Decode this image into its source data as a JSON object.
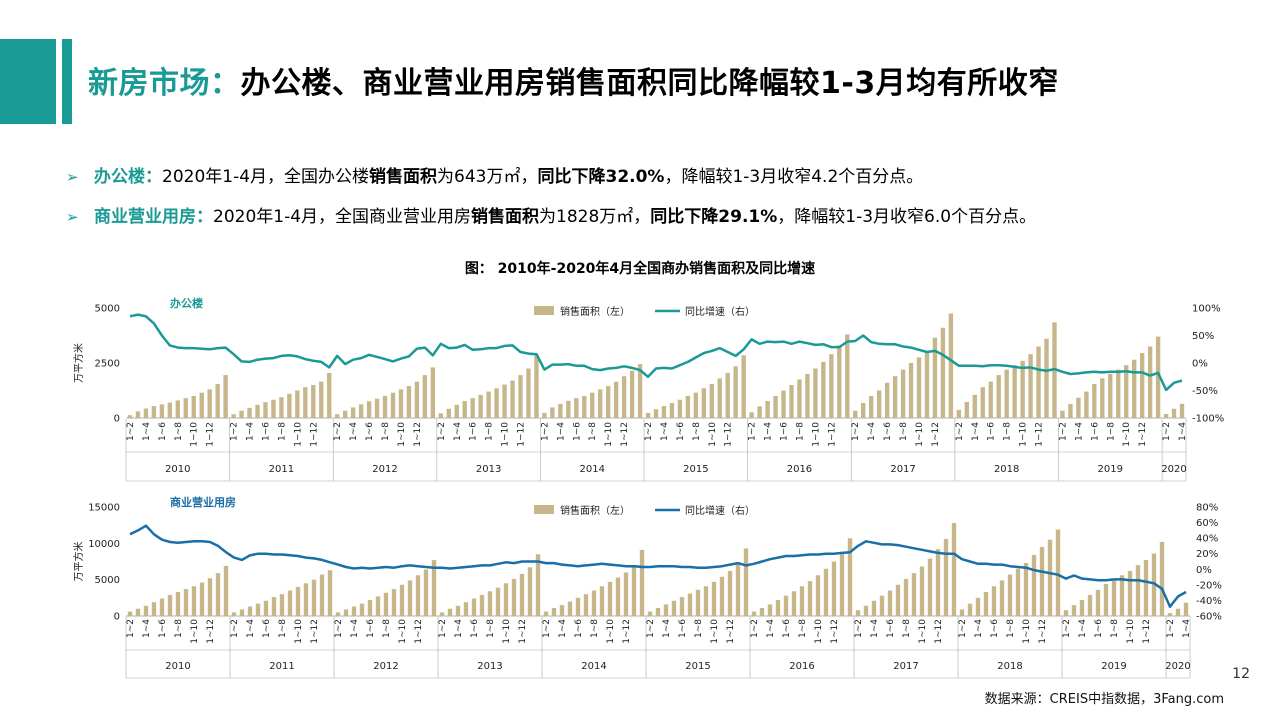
{
  "header": {
    "title_accent": "新房市场：",
    "title_rest": "办公楼、商业营业用房销售面积同比降幅较1-3月均有所收窄",
    "accent_color": "#1a9a95"
  },
  "bullets": [
    {
      "label": "办公楼：",
      "t1": "2020年1-4月，全国办公楼",
      "b1": "销售面积",
      "t2": "为643万㎡，",
      "b2": "同比下降32.0%",
      "t3": "，降幅较1-3月收窄4.2个百分点。"
    },
    {
      "label": "商业营业用房：",
      "t1": "2020年1-4月，全国商业营业用房",
      "b1": "销售面积",
      "t2": "为1828万㎡，",
      "b2": "同比下降29.1%",
      "t3": "，降幅较1-3月收窄6.0个百分点。"
    }
  ],
  "figure_title": "图：  2010年-2020年4月全国商办销售面积及同比增速",
  "page_number": "12",
  "source": "数据来源：CREIS中指数据，3Fang.com",
  "colors": {
    "bar": "#c6b68a",
    "line1": "#1a9a95",
    "line2": "#1a6fa8"
  },
  "chart_data": [
    {
      "type": "bar+line",
      "title": "办公楼",
      "ylabel": "万平方米",
      "ylim": [
        0,
        5000
      ],
      "y_ticks": [
        "0",
        "2500",
        "5000"
      ],
      "y2lim": [
        -100,
        100
      ],
      "y2_ticks": [
        "-100%",
        "-50%",
        "0%",
        "50%",
        "100%"
      ],
      "legend": [
        "销售面积（左）",
        "同比增速（右）"
      ],
      "years": [
        "2010",
        "2011",
        "2012",
        "2013",
        "2014",
        "2015",
        "2016",
        "2017",
        "2018",
        "2019",
        "2020"
      ],
      "period_labels": [
        "1~2",
        "1~4",
        "1~6",
        "1~8",
        "1~10",
        "1~12"
      ],
      "period_labels_2020": [
        "1~2",
        "1~4"
      ],
      "series": [
        {
          "name": "销售面积（左）",
          "values": [
            [
              130,
              300,
              430,
              540,
              620,
              700,
              800,
              900,
              1000,
              1150,
              1300,
              1550,
              1950
            ],
            [
              170,
              330,
              460,
              600,
              720,
              830,
              950,
              1100,
              1250,
              1400,
              1500,
              1650,
              2050
            ],
            [
              170,
              330,
              480,
              620,
              760,
              880,
              1000,
              1150,
              1300,
              1450,
              1650,
              1950,
              2300
            ],
            [
              210,
              420,
              600,
              770,
              900,
              1050,
              1200,
              1350,
              1520,
              1700,
              1950,
              2250,
              2900
            ],
            [
              230,
              480,
              640,
              780,
              900,
              1000,
              1150,
              1300,
              1450,
              1650,
              1900,
              2150,
              2450
            ],
            [
              230,
              400,
              540,
              680,
              830,
              1000,
              1150,
              1350,
              1550,
              1800,
              2050,
              2350,
              2850
            ],
            [
              260,
              530,
              770,
              1000,
              1250,
              1500,
              1750,
              2000,
              2250,
              2550,
              2900,
              3300,
              3800
            ],
            [
              330,
              680,
              1000,
              1250,
              1600,
              1900,
              2200,
              2500,
              2750,
              3050,
              3650,
              4100,
              4750
            ],
            [
              370,
              730,
              1050,
              1400,
              1650,
              1950,
              2200,
              2400,
              2600,
              2900,
              3250,
              3600,
              4350
            ],
            [
              330,
              640,
              920,
              1200,
              1550,
              1800,
              2000,
              2200,
              2400,
              2650,
              2950,
              3250,
              3700
            ],
            [
              180,
              420,
              643
            ]
          ]
        },
        {
          "name": "同比增速（右）",
          "values": [
            [
              85,
              88,
              85,
              72,
              50,
              32,
              28,
              27,
              27,
              26,
              25,
              27,
              28
            ],
            [
              16,
              3,
              2,
              6,
              8,
              9,
              13,
              14,
              12,
              7,
              4,
              2,
              -8
            ],
            [
              13,
              -2,
              6,
              9,
              15,
              11,
              7,
              3,
              8,
              12,
              26,
              28,
              14
            ],
            [
              35,
              27,
              28,
              33,
              24,
              25,
              27,
              27,
              31,
              32,
              20,
              17,
              16
            ],
            [
              -12,
              -3,
              -3,
              -2,
              -5,
              -5,
              -11,
              -13,
              -10,
              -9,
              -6,
              -9,
              -13
            ],
            [
              -25,
              -10,
              -9,
              -10,
              -4,
              2,
              10,
              18,
              22,
              27,
              20,
              13,
              25
            ],
            [
              43,
              35,
              39,
              38,
              39,
              35,
              39,
              36,
              33,
              34,
              29,
              29,
              39
            ],
            [
              40,
              50,
              38,
              35,
              34,
              34,
              30,
              28,
              24,
              20,
              22,
              15,
              5
            ],
            [
              -5,
              -5,
              -5,
              -6,
              -4,
              -4,
              -5,
              -7,
              -9,
              -8,
              -12,
              -14,
              -11
            ],
            [
              -16,
              -20,
              -19,
              -17,
              -16,
              -17,
              -16,
              -16,
              -15,
              -17,
              -17,
              -23,
              -18
            ],
            [
              -49,
              -36,
              -32
            ]
          ]
        }
      ]
    },
    {
      "type": "bar+line",
      "title": "商业营业用房",
      "ylabel": "万平方米",
      "ylim": [
        0,
        15000
      ],
      "y_ticks": [
        "0",
        "5000",
        "10000",
        "15000"
      ],
      "y2lim": [
        -60,
        80
      ],
      "y2_ticks": [
        "-60%",
        "-40%",
        "-20%",
        "0%",
        "20%",
        "40%",
        "60%",
        "80%"
      ],
      "legend": [
        "销售面积（左）",
        "同比增速（右）"
      ],
      "years": [
        "2010",
        "2011",
        "2012",
        "2013",
        "2014",
        "2015",
        "2016",
        "2017",
        "2018",
        "2019",
        "2020"
      ],
      "period_labels": [
        "1~2",
        "1~4",
        "1~6",
        "1~8",
        "1~10",
        "1~12"
      ],
      "period_labels_2020": [
        "1~2",
        "1~4"
      ],
      "series": [
        {
          "name": "销售面积（左）",
          "values": [
            [
              600,
              1000,
              1400,
              1900,
              2400,
              2900,
              3300,
              3700,
              4100,
              4600,
              5200,
              5900,
              6900
            ],
            [
              500,
              900,
              1300,
              1700,
              2100,
              2600,
              3000,
              3500,
              4000,
              4500,
              5000,
              5700,
              6300
            ],
            [
              500,
              900,
              1300,
              1700,
              2200,
              2700,
              3200,
              3700,
              4300,
              4900,
              5600,
              6400,
              7700
            ],
            [
              500,
              1000,
              1400,
              1900,
              2400,
              2900,
              3400,
              3900,
              4500,
              5100,
              5800,
              6700,
              8500
            ],
            [
              600,
              1100,
              1500,
              2000,
              2500,
              3000,
              3500,
              4100,
              4700,
              5300,
              6000,
              6900,
              9100
            ],
            [
              600,
              1100,
              1600,
              2100,
              2600,
              3100,
              3600,
              4100,
              4700,
              5400,
              6200,
              7200,
              9300
            ],
            [
              600,
              1100,
              1600,
              2200,
              2800,
              3400,
              4100,
              4800,
              5600,
              6500,
              7500,
              8700,
              10700
            ],
            [
              800,
              1400,
              2100,
              2800,
              3500,
              4300,
              5100,
              5900,
              6800,
              7900,
              9200,
              10600,
              12800
            ],
            [
              900,
              1700,
              2500,
              3300,
              4100,
              4900,
              5700,
              6500,
              7300,
              8400,
              9500,
              10500,
              11900
            ],
            [
              800,
              1500,
              2200,
              2900,
              3600,
              4400,
              5000,
              5600,
              6200,
              7000,
              7700,
              8600,
              10200
            ],
            [
              400,
              1000,
              1828
            ]
          ]
        },
        {
          "name": "同比增速（右）",
          "values": [
            [
              45,
              50,
              56,
              45,
              38,
              35,
              34,
              35,
              36,
              36,
              35,
              30,
              22
            ],
            [
              15,
              12,
              18,
              20,
              20,
              19,
              19,
              18,
              17,
              15,
              14,
              12,
              9
            ],
            [
              6,
              3,
              1,
              2,
              1,
              2,
              3,
              2,
              4,
              5,
              4,
              3,
              2
            ],
            [
              2,
              1,
              2,
              3,
              4,
              5,
              5,
              7,
              9,
              8,
              10,
              10,
              10
            ],
            [
              8,
              8,
              6,
              5,
              4,
              5,
              6,
              7,
              6,
              5,
              4,
              4,
              3
            ],
            [
              3,
              4,
              4,
              4,
              3,
              3,
              2,
              2,
              3,
              4,
              6,
              8,
              5
            ],
            [
              7,
              10,
              13,
              15,
              17,
              17,
              18,
              19,
              19,
              20,
              20,
              21,
              22
            ],
            [
              30,
              36,
              34,
              32,
              32,
              31,
              29,
              27,
              25,
              23,
              21,
              20,
              20
            ],
            [
              13,
              10,
              7,
              7,
              6,
              6,
              4,
              3,
              2,
              -1,
              -3,
              -5,
              -7
            ],
            [
              -12,
              -8,
              -12,
              -13,
              -14,
              -14,
              -13,
              -13,
              -14,
              -14,
              -16,
              -18,
              -25
            ],
            [
              -48,
              -35,
              -29.1
            ]
          ]
        }
      ]
    }
  ]
}
